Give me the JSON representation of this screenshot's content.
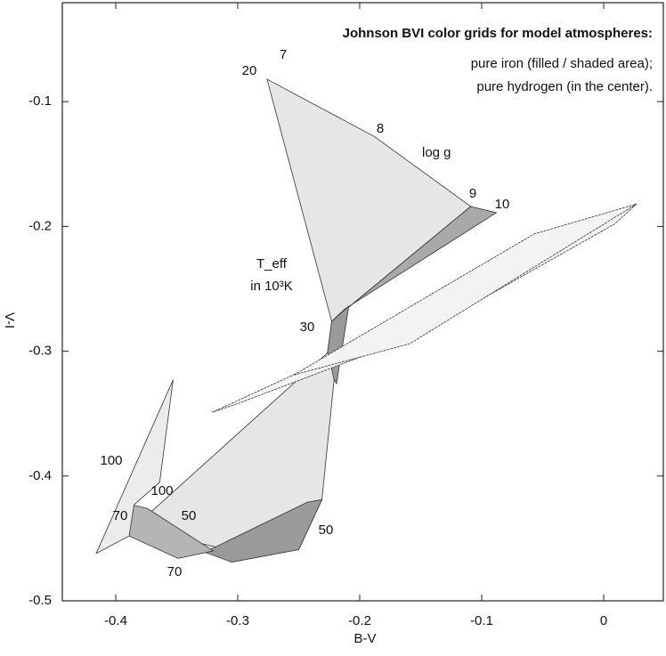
{
  "chart_data": {
    "type": "polygon",
    "title": "Johnson BVI color grids for model atmospheres:",
    "annotations": [
      "pure iron (filled / shaded area);",
      "pure hydrogen (in the center).",
      "log g",
      "T_eff",
      "in 10³K",
      "7",
      "20",
      "8",
      "9",
      "10",
      "30",
      "100",
      "100",
      "70",
      "50",
      "50",
      "70"
    ],
    "x_label": "B-V",
    "y_label": "V-I",
    "xlim": [
      -0.4438,
      0.0489
    ],
    "ylim": [
      -0.5,
      -0.0207
    ],
    "xticks": [
      -0.4,
      -0.3,
      -0.2,
      -0.1,
      0
    ],
    "yticks": [
      -0.1,
      -0.2,
      -0.3,
      -0.4,
      -0.5
    ],
    "series": [
      {
        "color": "#e6e6e6",
        "x": [
          -0.276,
          -0.188,
          -0.109,
          -0.223
        ],
        "values": [
          -0.082,
          -0.128,
          -0.184,
          -0.276
        ]
      },
      {
        "color": "#a9a9a9",
        "x": [
          -0.109,
          -0.088,
          -0.212,
          -0.223
        ],
        "values": [
          -0.184,
          -0.189,
          -0.266,
          -0.276
        ]
      },
      {
        "color": "#9a9a9a",
        "x": [
          -0.223,
          -0.209,
          -0.219,
          -0.228
        ],
        "values": [
          -0.276,
          -0.264,
          -0.326,
          -0.312
        ]
      },
      {
        "color": "#e6e6e6",
        "x": [
          -0.226,
          -0.221,
          -0.231,
          -0.25,
          -0.305,
          -0.385
        ],
        "values": [
          -0.301,
          -0.323,
          -0.419,
          -0.459,
          -0.46,
          -0.441
        ]
      },
      {
        "color": "#9a9a9a",
        "x": [
          -0.243,
          -0.231,
          -0.25,
          -0.305,
          -0.327
        ],
        "values": [
          -0.421,
          -0.419,
          -0.459,
          -0.469,
          -0.461
        ]
      },
      {
        "color": "#b5b5b5",
        "x": [
          -0.387,
          -0.374,
          -0.32,
          -0.349,
          -0.389
        ],
        "values": [
          -0.423,
          -0.426,
          -0.46,
          -0.466,
          -0.448
        ]
      },
      {
        "color": "#ececec",
        "x": [
          -0.416,
          -0.353,
          -0.364,
          -0.385,
          -0.389
        ],
        "values": [
          -0.462,
          -0.323,
          -0.405,
          -0.423,
          -0.448
        ]
      },
      {
        "color": "#f3f3f3",
        "x": [
          -0.321,
          -0.159,
          0.027,
          0.009,
          -0.152,
          -0.3
        ],
        "values": [
          -0.349,
          -0.276,
          -0.182,
          -0.198,
          -0.287,
          -0.342
        ]
      },
      {
        "color": "#f3f3f3",
        "x": [
          -0.254,
          -0.057,
          0.027,
          -0.159
        ],
        "values": [
          -0.319,
          -0.206,
          -0.182,
          -0.294
        ]
      }
    ]
  }
}
